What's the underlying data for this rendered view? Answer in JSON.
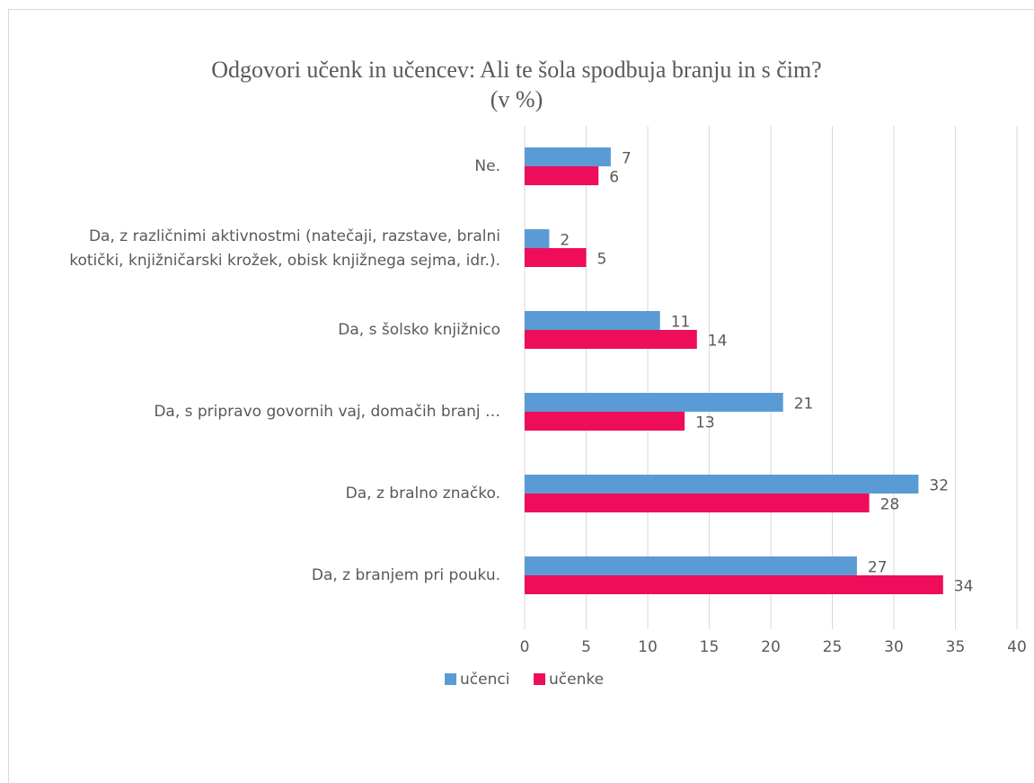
{
  "chart_data": {
    "type": "bar",
    "orientation": "horizontal",
    "title": [
      "Odgovori učenk in učencev: Ali te šola  spodbuja branju in s čim?",
      "(v %)"
    ],
    "categories": [
      "Ne.",
      [
        "Da, z različnimi aktivnostmi (natečaji, razstave, bralni",
        "kotički, knjižničarski krožek,  obisk knjižnega sejma, idr.)."
      ],
      "Da, s šolsko knjižnico",
      "Da, s pripravo govornih vaj, domačih branj …",
      "Da, z bralno značko.",
      "Da, z branjem pri pouku."
    ],
    "series": [
      {
        "name": "učenci",
        "color": "#5b9bd5",
        "values": [
          7,
          2,
          11,
          21,
          32,
          27
        ]
      },
      {
        "name": "učenke",
        "color": "#ee0d5a",
        "values": [
          6,
          5,
          14,
          13,
          28,
          34
        ]
      }
    ],
    "xlim": [
      0,
      40
    ],
    "xticks": [
      0,
      5,
      10,
      15,
      20,
      25,
      30,
      35,
      40
    ],
    "grid": true,
    "legend": "bottom"
  }
}
